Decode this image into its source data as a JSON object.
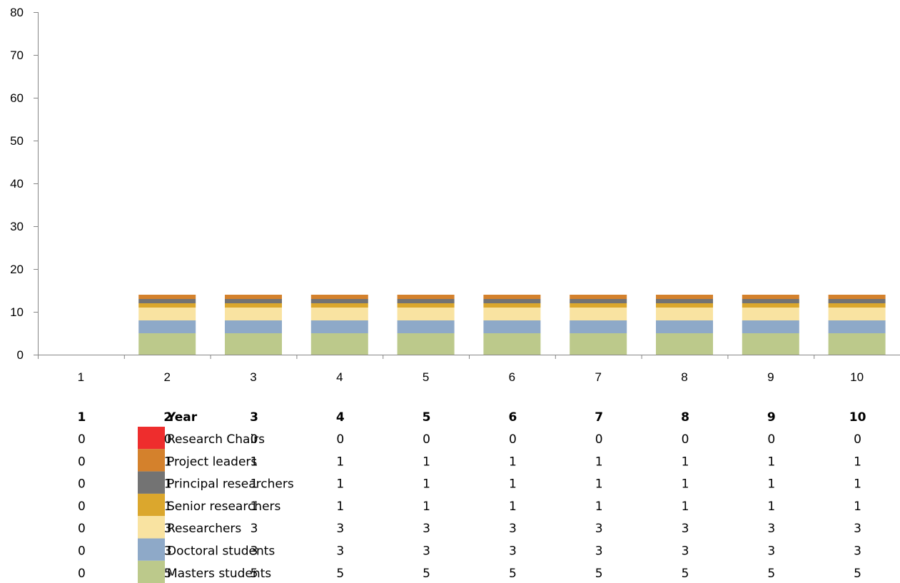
{
  "chart_data": {
    "type": "bar",
    "stacked": true,
    "title": "",
    "xlabel": "",
    "ylabel": "",
    "ylim": [
      0,
      80
    ],
    "yticks": [
      0,
      10,
      20,
      30,
      40,
      50,
      60,
      70,
      80
    ],
    "grid": false,
    "legend_placement": "bottom data table",
    "table_header": "Year",
    "categories": [
      "1",
      "2",
      "3",
      "4",
      "5",
      "6",
      "7",
      "8",
      "9",
      "10"
    ],
    "series": [
      {
        "name": "Research Chairs",
        "color": "#ee2d2d",
        "values": [
          0,
          0,
          0,
          0,
          0,
          0,
          0,
          0,
          0,
          0
        ]
      },
      {
        "name": "Project leaders",
        "color": "#d4812c",
        "values": [
          0,
          1,
          1,
          1,
          1,
          1,
          1,
          1,
          1,
          1
        ]
      },
      {
        "name": "Principal researchers",
        "color": "#737373",
        "values": [
          0,
          1,
          1,
          1,
          1,
          1,
          1,
          1,
          1,
          1
        ]
      },
      {
        "name": "Senior researchers",
        "color": "#dba72d",
        "values": [
          0,
          1,
          1,
          1,
          1,
          1,
          1,
          1,
          1,
          1
        ]
      },
      {
        "name": "Researchers",
        "color": "#f9e3a1",
        "values": [
          0,
          3,
          3,
          3,
          3,
          3,
          3,
          3,
          3,
          3
        ]
      },
      {
        "name": "Doctoral students",
        "color": "#8ea9c8",
        "values": [
          0,
          3,
          3,
          3,
          3,
          3,
          3,
          3,
          3,
          3
        ]
      },
      {
        "name": "Masters students",
        "color": "#bcc98b",
        "values": [
          0,
          5,
          5,
          5,
          5,
          5,
          5,
          5,
          5,
          5
        ]
      }
    ]
  }
}
